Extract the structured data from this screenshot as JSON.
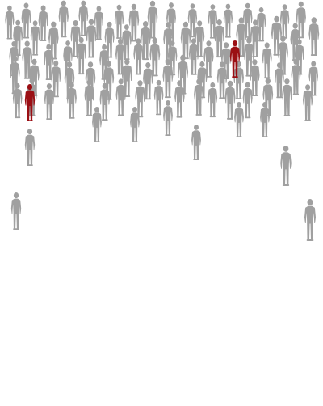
{
  "colors": {
    "background": "#ffffff",
    "person": "#a0a0a0",
    "highlight": "#9b0f14"
  },
  "crowd": {
    "person_icon": "person-silhouette-icon",
    "highlighted_count": 2
  }
}
